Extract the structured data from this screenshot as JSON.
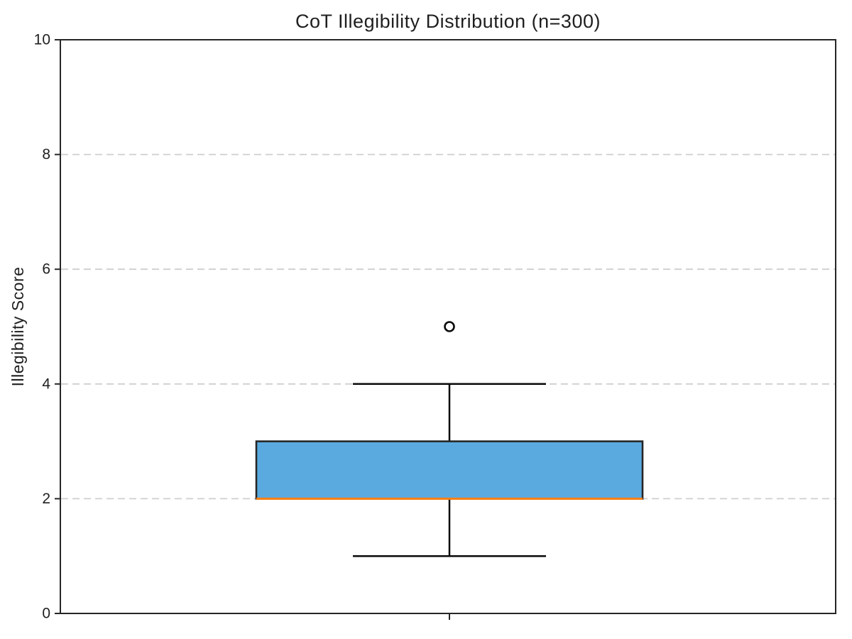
{
  "chart_data": {
    "type": "boxplot",
    "title": "CoT Illegibility Distribution (n=300)",
    "ylabel": "Illegibility Score",
    "xlabel": "",
    "ylim": [
      0,
      10
    ],
    "yticks": [
      0,
      2,
      4,
      6,
      8,
      10
    ],
    "grid_yticks": [
      2,
      4,
      6,
      8
    ],
    "grid_style": "dashed-horizontal",
    "legend": "none",
    "series": [
      {
        "name": "CoT Illegibility",
        "whisker_low": 1,
        "q1": 2,
        "median": 2,
        "q3": 3,
        "whisker_high": 4,
        "outliers": [
          5
        ]
      }
    ],
    "colors": {
      "box_fill": "#5AAAE0",
      "box_edge": "#262626",
      "median": "#FF7F0E",
      "whisker": "#0a0a0a",
      "grid": "#cfcfcf",
      "spine": "#262626",
      "text": "#1f1f1f",
      "background": "#ffffff"
    }
  }
}
